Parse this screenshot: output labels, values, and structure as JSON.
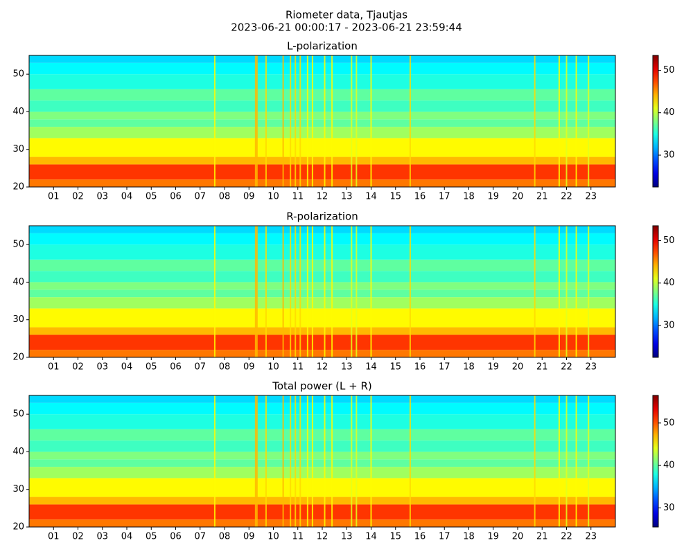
{
  "title": "Riometer data, Tjautjas",
  "subtitle": "2023-06-21 00:00:17 - 2023-06-21 23:59:44",
  "chart_data": [
    {
      "type": "heatmap",
      "title": "L-polarization",
      "xlim": [
        0,
        24
      ],
      "xticks": [
        {
          "value": 1,
          "label": "01"
        },
        {
          "value": 2,
          "label": "02"
        },
        {
          "value": 3,
          "label": "03"
        },
        {
          "value": 4,
          "label": "04"
        },
        {
          "value": 5,
          "label": "05"
        },
        {
          "value": 6,
          "label": "06"
        },
        {
          "value": 7,
          "label": "07"
        },
        {
          "value": 8,
          "label": "08"
        },
        {
          "value": 9,
          "label": "09"
        },
        {
          "value": 10,
          "label": "10"
        },
        {
          "value": 11,
          "label": "11"
        },
        {
          "value": 12,
          "label": "12"
        },
        {
          "value": 13,
          "label": "13"
        },
        {
          "value": 14,
          "label": "14"
        },
        {
          "value": 15,
          "label": "15"
        },
        {
          "value": 16,
          "label": "16"
        },
        {
          "value": 17,
          "label": "17"
        },
        {
          "value": 18,
          "label": "18"
        },
        {
          "value": 19,
          "label": "19"
        },
        {
          "value": 20,
          "label": "20"
        },
        {
          "value": 21,
          "label": "21"
        },
        {
          "value": 22,
          "label": "22"
        },
        {
          "value": 23,
          "label": "23"
        }
      ],
      "ylim": [
        20,
        55
      ],
      "yticks": [
        20,
        30,
        40,
        50
      ],
      "band_edges": [
        20,
        22,
        26,
        28,
        33,
        36,
        38,
        40,
        43,
        46,
        50,
        53,
        55
      ],
      "values": [
        46,
        48,
        44,
        42,
        39,
        37,
        38,
        36,
        37,
        35,
        34,
        33
      ],
      "event_hours": [
        7.6,
        9.3,
        9.7,
        10.4,
        10.7,
        10.9,
        11.1,
        11.4,
        11.6,
        12.1,
        12.4,
        13.2,
        13.4,
        14.0,
        15.6,
        20.7,
        21.7,
        22.0,
        22.4,
        22.9
      ],
      "event_values": [
        42,
        44,
        43,
        44,
        43,
        43,
        43,
        42,
        42,
        42,
        42,
        41,
        41,
        42,
        43,
        43,
        42,
        41,
        42,
        41
      ],
      "clim": [
        22.5,
        53.5
      ],
      "cticks": [
        30,
        40,
        50
      ]
    },
    {
      "type": "heatmap",
      "title": "R-polarization",
      "xlim": [
        0,
        24
      ],
      "xticks": [
        {
          "value": 1,
          "label": "01"
        },
        {
          "value": 2,
          "label": "02"
        },
        {
          "value": 3,
          "label": "03"
        },
        {
          "value": 4,
          "label": "04"
        },
        {
          "value": 5,
          "label": "05"
        },
        {
          "value": 6,
          "label": "06"
        },
        {
          "value": 7,
          "label": "07"
        },
        {
          "value": 8,
          "label": "08"
        },
        {
          "value": 9,
          "label": "09"
        },
        {
          "value": 10,
          "label": "10"
        },
        {
          "value": 11,
          "label": "11"
        },
        {
          "value": 12,
          "label": "12"
        },
        {
          "value": 13,
          "label": "13"
        },
        {
          "value": 14,
          "label": "14"
        },
        {
          "value": 15,
          "label": "15"
        },
        {
          "value": 16,
          "label": "16"
        },
        {
          "value": 17,
          "label": "17"
        },
        {
          "value": 18,
          "label": "18"
        },
        {
          "value": 19,
          "label": "19"
        },
        {
          "value": 20,
          "label": "20"
        },
        {
          "value": 21,
          "label": "21"
        },
        {
          "value": 22,
          "label": "22"
        },
        {
          "value": 23,
          "label": "23"
        }
      ],
      "ylim": [
        20,
        55
      ],
      "yticks": [
        20,
        30,
        40,
        50
      ],
      "band_edges": [
        20,
        22,
        26,
        28,
        33,
        36,
        38,
        40,
        43,
        46,
        50,
        53,
        55
      ],
      "values": [
        46,
        48,
        44,
        42,
        39,
        37,
        38,
        36,
        37,
        35,
        34,
        33
      ],
      "event_hours": [
        7.6,
        9.3,
        9.7,
        10.4,
        10.7,
        10.9,
        11.1,
        11.4,
        11.6,
        12.1,
        12.4,
        13.2,
        13.4,
        14.0,
        15.6,
        20.7,
        21.7,
        22.0,
        22.4,
        22.9
      ],
      "event_values": [
        42,
        44,
        43,
        44,
        43,
        43,
        43,
        42,
        42,
        42,
        42,
        41,
        41,
        42,
        43,
        43,
        42,
        41,
        42,
        41
      ],
      "clim": [
        22.5,
        53.5
      ],
      "cticks": [
        30,
        40,
        50
      ]
    },
    {
      "type": "heatmap",
      "title": "Total power (L + R)",
      "xlim": [
        0,
        24
      ],
      "xticks": [
        {
          "value": 1,
          "label": "01"
        },
        {
          "value": 2,
          "label": "02"
        },
        {
          "value": 3,
          "label": "03"
        },
        {
          "value": 4,
          "label": "04"
        },
        {
          "value": 5,
          "label": "05"
        },
        {
          "value": 6,
          "label": "06"
        },
        {
          "value": 7,
          "label": "07"
        },
        {
          "value": 8,
          "label": "08"
        },
        {
          "value": 9,
          "label": "09"
        },
        {
          "value": 10,
          "label": "10"
        },
        {
          "value": 11,
          "label": "11"
        },
        {
          "value": 12,
          "label": "12"
        },
        {
          "value": 13,
          "label": "13"
        },
        {
          "value": 14,
          "label": "14"
        },
        {
          "value": 15,
          "label": "15"
        },
        {
          "value": 16,
          "label": "16"
        },
        {
          "value": 17,
          "label": "17"
        },
        {
          "value": 18,
          "label": "18"
        },
        {
          "value": 19,
          "label": "19"
        },
        {
          "value": 20,
          "label": "20"
        },
        {
          "value": 21,
          "label": "21"
        },
        {
          "value": 22,
          "label": "22"
        },
        {
          "value": 23,
          "label": "23"
        }
      ],
      "ylim": [
        20,
        55
      ],
      "yticks": [
        20,
        30,
        40,
        50
      ],
      "band_edges": [
        20,
        22,
        26,
        28,
        33,
        36,
        38,
        40,
        43,
        46,
        50,
        53,
        55
      ],
      "values": [
        49,
        51,
        47,
        45,
        42,
        40,
        41,
        39,
        40,
        38,
        37,
        36
      ],
      "event_hours": [
        7.6,
        9.3,
        9.7,
        10.4,
        10.7,
        10.9,
        11.1,
        11.4,
        11.6,
        12.1,
        12.4,
        13.2,
        13.4,
        14.0,
        15.6,
        20.7,
        21.7,
        22.0,
        22.4,
        22.9
      ],
      "event_values": [
        45,
        47,
        46,
        47,
        46,
        46,
        46,
        45,
        45,
        45,
        45,
        44,
        44,
        45,
        46,
        46,
        45,
        44,
        45,
        44
      ],
      "clim": [
        25.5,
        56.5
      ],
      "cticks": [
        30,
        40,
        50
      ]
    }
  ]
}
